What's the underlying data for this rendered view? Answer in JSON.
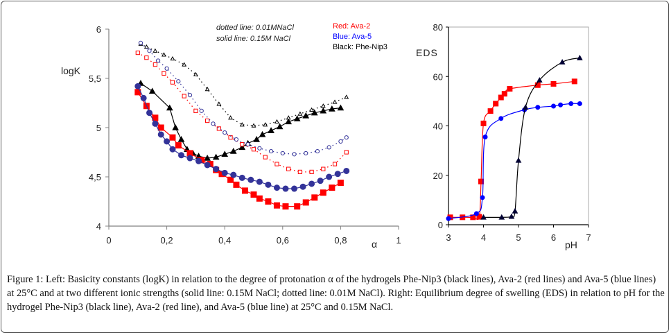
{
  "caption": {
    "label": "Figure 1:",
    "text": " Left: Basicity constants (logK) in relation to the degree of protonation α of the hydrogels Phe-Nip3 (black lines), Ava-2 (red lines) and Ava-5 (blue lines) at 25°C and at two different ionic strengths (solid line: 0.15M NaCl; dotted line: 0.01M NaCl). Right: Equilibrium degree of swelling (EDS) in relation to pH for the hydrogel Phe-Nip3 (black line), Ava-2 (red line), and Ava-5 (blue line) at 25°C and 0.15M NaCl."
  },
  "chart_data": [
    {
      "type": "line",
      "title": "",
      "xlabel": "α",
      "ylabel": "logK",
      "xlim": [
        0,
        1
      ],
      "ylim": [
        4,
        6
      ],
      "xticks": [
        "0",
        "0,2",
        "0,4",
        "0,6",
        "0,8",
        "1"
      ],
      "xtick_values": [
        0,
        0.2,
        0.4,
        0.6,
        0.8,
        1
      ],
      "yticks": [
        "4",
        "4,5",
        "5",
        "5,5",
        "6"
      ],
      "ytick_values": [
        4,
        4.5,
        5,
        5.5,
        6
      ],
      "grid": false,
      "annotations": [
        "dotted line: 0.01MNaCl",
        "solid line: 0.15M NaCl"
      ],
      "legend": [
        {
          "label": "Red:  Ava-2",
          "color": "#ff0000"
        },
        {
          "label": "Blue:  Ava-5",
          "color": "#0000ff"
        },
        {
          "label": "Black:  Phe-Nip3",
          "color": "#000000"
        }
      ],
      "legend_position": "top-right",
      "series": [
        {
          "name": "Phe-Nip3 0.15M NaCl",
          "color": "#000000",
          "style": "solid",
          "marker": "triangle-filled",
          "x": [
            0.11,
            0.15,
            0.21,
            0.23,
            0.25,
            0.27,
            0.29,
            0.31,
            0.34,
            0.37,
            0.4,
            0.43,
            0.46,
            0.48,
            0.51,
            0.53,
            0.56,
            0.59,
            0.62,
            0.65,
            0.68,
            0.71,
            0.74,
            0.77,
            0.8
          ],
          "y": [
            5.45,
            5.37,
            5.2,
            5.0,
            4.88,
            4.78,
            4.74,
            4.71,
            4.69,
            4.7,
            4.73,
            4.76,
            4.8,
            4.84,
            4.88,
            4.93,
            4.97,
            5.01,
            5.06,
            5.09,
            5.12,
            5.15,
            5.17,
            5.19,
            5.2
          ]
        },
        {
          "name": "Ava-2 0.15M NaCl",
          "color": "#ff0000",
          "style": "solid",
          "marker": "square-filled",
          "x": [
            0.1,
            0.13,
            0.16,
            0.18,
            0.22,
            0.24,
            0.28,
            0.32,
            0.35,
            0.37,
            0.39,
            0.42,
            0.44,
            0.47,
            0.5,
            0.52,
            0.55,
            0.58,
            0.61,
            0.65,
            0.68,
            0.71,
            0.74,
            0.77,
            0.8
          ],
          "y": [
            5.36,
            5.22,
            5.1,
            5.0,
            4.9,
            4.82,
            4.74,
            4.67,
            4.63,
            4.57,
            4.53,
            4.47,
            4.42,
            4.36,
            4.32,
            4.28,
            4.25,
            4.21,
            4.2,
            4.2,
            4.24,
            4.29,
            4.34,
            4.39,
            4.44
          ]
        },
        {
          "name": "Ava-5 0.15M NaCl",
          "color": "#333399",
          "style": "solid",
          "marker": "circle-filled",
          "x": [
            0.1,
            0.12,
            0.14,
            0.16,
            0.18,
            0.2,
            0.22,
            0.25,
            0.28,
            0.31,
            0.34,
            0.37,
            0.4,
            0.43,
            0.46,
            0.49,
            0.52,
            0.55,
            0.58,
            0.61,
            0.64,
            0.67,
            0.7,
            0.73,
            0.76,
            0.79,
            0.82
          ],
          "y": [
            5.42,
            5.3,
            5.15,
            5.04,
            4.93,
            4.86,
            4.78,
            4.72,
            4.69,
            4.66,
            4.62,
            4.58,
            4.54,
            4.52,
            4.49,
            4.47,
            4.45,
            4.42,
            4.39,
            4.38,
            4.38,
            4.4,
            4.43,
            4.46,
            4.5,
            4.53,
            4.56
          ]
        },
        {
          "name": "Phe-Nip3 0.01M NaCl",
          "color": "#000000",
          "style": "dotted",
          "marker": "triangle-open",
          "x": [
            0.11,
            0.13,
            0.16,
            0.19,
            0.22,
            0.26,
            0.3,
            0.34,
            0.38,
            0.42,
            0.46,
            0.5,
            0.54,
            0.58,
            0.62,
            0.66,
            0.7,
            0.74,
            0.78,
            0.82
          ],
          "y": [
            5.85,
            5.82,
            5.78,
            5.74,
            5.7,
            5.64,
            5.54,
            5.39,
            5.24,
            5.1,
            5.03,
            5.02,
            5.03,
            5.06,
            5.1,
            5.14,
            5.18,
            5.22,
            5.26,
            5.31
          ]
        },
        {
          "name": "Ava-2 0.01M NaCl",
          "color": "#ff0000",
          "style": "dotted",
          "marker": "square-open",
          "x": [
            0.1,
            0.13,
            0.16,
            0.19,
            0.22,
            0.26,
            0.3,
            0.34,
            0.38,
            0.42,
            0.46,
            0.5,
            0.54,
            0.58,
            0.62,
            0.66,
            0.7,
            0.74,
            0.78,
            0.82
          ],
          "y": [
            5.76,
            5.71,
            5.64,
            5.55,
            5.46,
            5.32,
            5.17,
            5.07,
            4.99,
            4.9,
            4.83,
            4.78,
            4.7,
            4.63,
            4.58,
            4.55,
            4.55,
            4.58,
            4.63,
            4.75
          ]
        },
        {
          "name": "Ava-5 0.01M NaCl",
          "color": "#333399",
          "style": "dotted",
          "marker": "circle-open",
          "x": [
            0.11,
            0.14,
            0.17,
            0.2,
            0.24,
            0.28,
            0.32,
            0.36,
            0.4,
            0.44,
            0.48,
            0.52,
            0.56,
            0.6,
            0.64,
            0.68,
            0.72,
            0.76,
            0.8,
            0.82
          ],
          "y": [
            5.86,
            5.78,
            5.68,
            5.6,
            5.47,
            5.33,
            5.17,
            5.04,
            4.95,
            4.88,
            4.83,
            4.79,
            4.76,
            4.74,
            4.73,
            4.74,
            4.76,
            4.8,
            4.86,
            4.9
          ]
        }
      ]
    },
    {
      "type": "line",
      "title": "",
      "xlabel": "pH",
      "ylabel": "EDS",
      "xlim": [
        3,
        7
      ],
      "ylim": [
        0,
        80
      ],
      "xticks": [
        "3",
        "4",
        "5",
        "6",
        "7"
      ],
      "xtick_values": [
        3,
        4,
        5,
        6,
        7
      ],
      "yticks": [
        "0",
        "20",
        "40",
        "60",
        "80"
      ],
      "ytick_values": [
        0,
        20,
        40,
        60,
        80
      ],
      "grid": false,
      "series": [
        {
          "name": "Ava-2",
          "color": "#ff0000",
          "marker": "square-filled",
          "x": [
            3.05,
            3.4,
            3.7,
            3.88,
            3.93,
            4.0,
            4.2,
            4.35,
            4.5,
            4.6,
            4.75,
            5.55,
            6.0,
            6.6
          ],
          "y": [
            3.0,
            3.0,
            3.0,
            3.2,
            17.5,
            41,
            46,
            49,
            51.5,
            53,
            55,
            56.5,
            57,
            58
          ]
        },
        {
          "name": "Ava-5",
          "color": "#0000ff",
          "marker": "circle-filled",
          "x": [
            3.0,
            3.8,
            3.97,
            4.05,
            4.5,
            5.17,
            5.55,
            6.0,
            6.2,
            6.5,
            6.75
          ],
          "y": [
            2.5,
            4.5,
            11,
            35.5,
            43,
            46.5,
            47.5,
            48,
            48.5,
            49,
            49
          ]
        },
        {
          "name": "Phe-Nip3",
          "color": "#000000",
          "marker": "triangle-filled",
          "x": [
            4.0,
            4.52,
            4.8,
            4.9,
            5.0,
            5.2,
            5.6,
            6.25,
            6.75
          ],
          "y": [
            3.0,
            3.0,
            3.3,
            5.5,
            26,
            47.5,
            58.5,
            65.8,
            67.5
          ]
        }
      ]
    }
  ]
}
